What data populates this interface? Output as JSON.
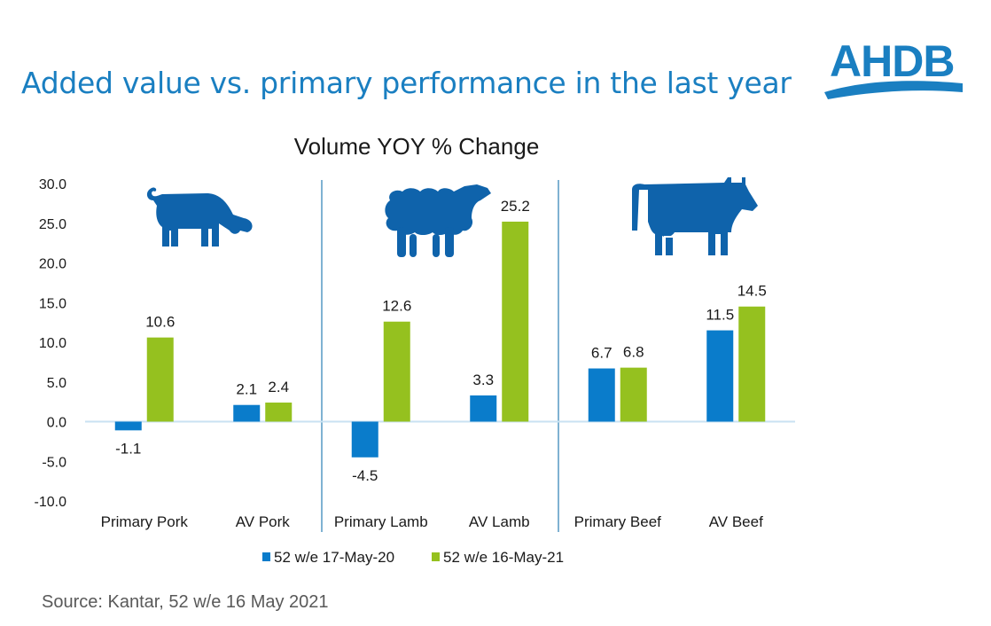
{
  "header": {
    "title": "Added value vs. primary performance in the last year",
    "logo_text": "AHDB",
    "brand_color": "#1a7fc1"
  },
  "footer": {
    "source": "Source: Kantar, 52 w/e 16 May 2021"
  },
  "icons": [
    "pig-icon",
    "sheep-icon",
    "cow-icon"
  ],
  "chart_data": {
    "type": "bar",
    "title": "Volume YOY % Change",
    "xlabel": "",
    "ylabel": "",
    "categories": [
      "Primary Pork",
      "AV Pork",
      "Primary Lamb",
      "AV Lamb",
      "Primary Beef",
      "AV Beef"
    ],
    "series": [
      {
        "name": "52 w/e 17-May-20",
        "color": "#0a7ccb",
        "values": [
          -1.1,
          2.1,
          -4.5,
          3.3,
          6.7,
          11.5
        ]
      },
      {
        "name": "52 w/e 16-May-21",
        "color": "#95c11f",
        "values": [
          10.6,
          2.4,
          12.6,
          25.2,
          6.8,
          14.5
        ]
      }
    ],
    "data_labels": [
      [
        "-1.1",
        "2.1",
        "-4.5",
        "3.3",
        "6.7",
        "11.5"
      ],
      [
        "10.6",
        "2.4",
        "12.6",
        "25.2",
        "6.8",
        "14.5"
      ]
    ],
    "ylim": [
      -10,
      30
    ],
    "yticks": [
      30,
      25,
      20,
      15,
      10,
      5,
      0,
      -5,
      -10
    ],
    "ytick_labels": [
      "30.0",
      "25.0",
      "20.0",
      "15.0",
      "10.0",
      "5.0",
      "0.0",
      "-5.0",
      "-10.0"
    ],
    "grid": false,
    "group_dividers_after": [
      1,
      3
    ],
    "legend_position": "bottom"
  }
}
